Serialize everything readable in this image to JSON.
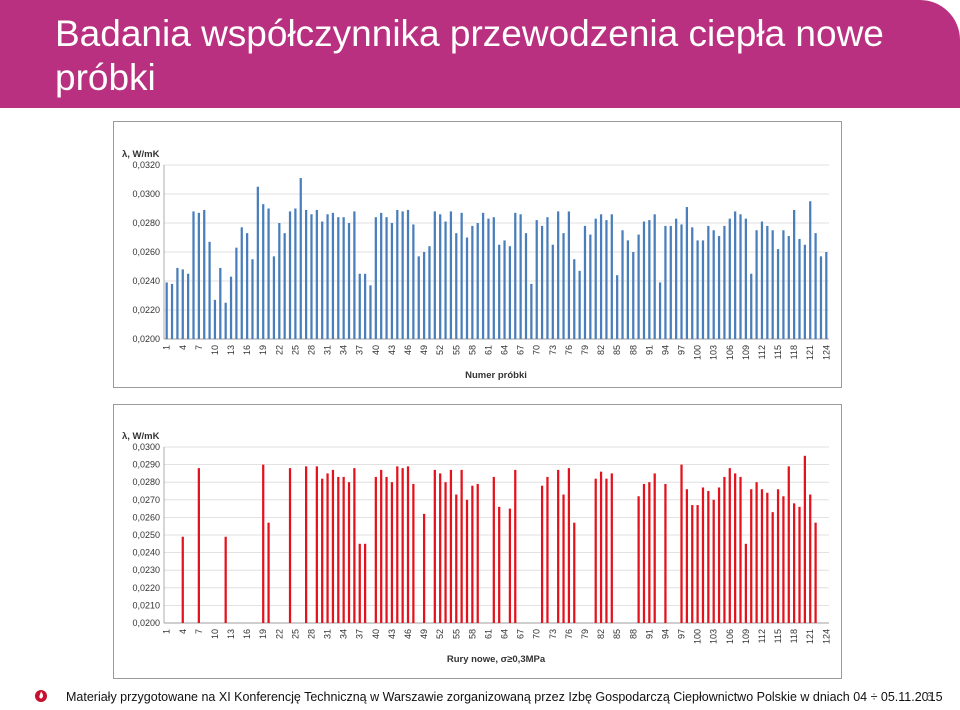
{
  "slide": {
    "title": "Badania współczynnika przewodzenia ciepła nowe próbki",
    "footer": "Materiały przygotowane na  XI Konferencję Techniczną w Warszawie zorganizowaną przez Izbę Gospodarczą Ciepłownictwo Polskie w dniach 04 ÷ 05.11.2015",
    "page_number": "6",
    "logo_icon": "flame-logo-icon"
  },
  "colors": {
    "header": "#b8307f",
    "bars_top": "#4a7ebb",
    "bars_bottom": "#e3121c"
  },
  "chart_data": [
    {
      "type": "bar",
      "ylabel": "λ, W/mK",
      "xlabel": "Numer próbki",
      "ylim": [
        0.02,
        0.032
      ],
      "yticks": [
        "0,0200",
        "0,0220",
        "0,0240",
        "0,0260",
        "0,0280",
        "0,0300",
        "0,0320"
      ],
      "ytick_values": [
        0.02,
        0.022,
        0.024,
        0.026,
        0.028,
        0.03,
        0.032
      ],
      "xtick_labels": [
        "1",
        "4",
        "7",
        "10",
        "13",
        "16",
        "19",
        "22",
        "25",
        "28",
        "31",
        "34",
        "37",
        "40",
        "43",
        "46",
        "49",
        "52",
        "55",
        "58",
        "61",
        "64",
        "67",
        "70",
        "73",
        "76",
        "79",
        "82",
        "85",
        "88",
        "91",
        "94",
        "97",
        "100",
        "103",
        "106",
        "109",
        "112",
        "115",
        "118",
        "121",
        "124"
      ],
      "categories_count": 124,
      "values": [
        0.0239,
        0.0238,
        0.0249,
        0.0248,
        0.0245,
        0.0288,
        0.0287,
        0.0289,
        0.0267,
        0.0227,
        0.0249,
        0.0225,
        0.0243,
        0.0263,
        0.0277,
        0.0273,
        0.0255,
        0.0305,
        0.0293,
        0.029,
        0.0257,
        0.028,
        0.0273,
        0.0288,
        0.029,
        0.0311,
        0.0289,
        0.0286,
        0.0289,
        0.0281,
        0.0286,
        0.0287,
        0.0284,
        0.0284,
        0.028,
        0.0288,
        0.0245,
        0.0245,
        0.0237,
        0.0284,
        0.0287,
        0.0284,
        0.028,
        0.0289,
        0.0288,
        0.0289,
        0.0279,
        0.0257,
        0.026,
        0.0264,
        0.0288,
        0.0286,
        0.0281,
        0.0288,
        0.0273,
        0.0287,
        0.027,
        0.0278,
        0.028,
        0.0287,
        0.0283,
        0.0284,
        0.0265,
        0.0268,
        0.0264,
        0.0287,
        0.0286,
        0.0273,
        0.0238,
        0.0282,
        0.0278,
        0.0284,
        0.0265,
        0.0288,
        0.0273,
        0.0288,
        0.0255,
        0.0247,
        0.0278,
        0.0272,
        0.0283,
        0.0286,
        0.0282,
        0.0286,
        0.0244,
        0.0275,
        0.0268,
        0.026,
        0.0272,
        0.0281,
        0.0282,
        0.0286,
        0.0239,
        0.0278,
        0.0278,
        0.0283,
        0.0279,
        0.0291,
        0.0277,
        0.0268,
        0.0268,
        0.0278,
        0.0275,
        0.0271,
        0.0278,
        0.0283,
        0.0288,
        0.0286,
        0.0283,
        0.0245,
        0.0275,
        0.0281,
        0.0278,
        0.0275,
        0.0262,
        0.0275,
        0.0271,
        0.0289,
        0.0269,
        0.0265,
        0.0295,
        0.0273,
        0.0257,
        0.026
      ]
    },
    {
      "type": "bar",
      "ylabel": "λ, W/mK",
      "xlabel": "Rury nowe, σ≥0,3MPa",
      "ylim": [
        0.02,
        0.03
      ],
      "yticks": [
        "0,0200",
        "0,0210",
        "0,0220",
        "0,0230",
        "0,0240",
        "0,0250",
        "0,0260",
        "0,0270",
        "0,0280",
        "0,0290",
        "0,0300"
      ],
      "ytick_values": [
        0.02,
        0.021,
        0.022,
        0.023,
        0.024,
        0.025,
        0.026,
        0.027,
        0.028,
        0.029,
        0.03
      ],
      "xtick_labels": [
        "1",
        "4",
        "7",
        "10",
        "13",
        "16",
        "19",
        "22",
        "25",
        "28",
        "31",
        "34",
        "37",
        "40",
        "43",
        "46",
        "49",
        "52",
        "55",
        "58",
        "61",
        "64",
        "67",
        "70",
        "73",
        "76",
        "79",
        "82",
        "85",
        "88",
        "91",
        "94",
        "97",
        "100",
        "103",
        "106",
        "109",
        "112",
        "115",
        "118",
        "121",
        "124"
      ],
      "categories_count": 124,
      "values": [
        null,
        null,
        null,
        0.0249,
        null,
        null,
        0.0288,
        null,
        null,
        null,
        null,
        0.0249,
        null,
        null,
        null,
        null,
        null,
        null,
        0.029,
        0.0257,
        null,
        null,
        null,
        0.0288,
        null,
        null,
        0.0289,
        null,
        0.0289,
        0.0282,
        0.0285,
        0.0287,
        0.0283,
        0.0283,
        0.028,
        0.0288,
        0.0245,
        0.0245,
        null,
        0.0283,
        0.0287,
        0.0283,
        0.028,
        0.0289,
        0.0288,
        0.0289,
        0.0279,
        null,
        0.0262,
        null,
        0.0287,
        0.0285,
        0.028,
        0.0287,
        0.0273,
        0.0287,
        0.027,
        0.0278,
        0.0279,
        null,
        null,
        0.0283,
        0.0266,
        null,
        0.0265,
        0.0287,
        null,
        null,
        null,
        null,
        0.0278,
        0.0283,
        null,
        0.0287,
        0.0273,
        0.0288,
        0.0257,
        null,
        null,
        null,
        0.0282,
        0.0286,
        0.0282,
        0.0285,
        null,
        null,
        null,
        null,
        0.0272,
        0.0279,
        0.028,
        0.0285,
        null,
        0.0279,
        null,
        null,
        0.029,
        0.0276,
        0.0267,
        0.0267,
        0.0277,
        0.0275,
        0.027,
        0.0277,
        0.0283,
        0.0288,
        0.0285,
        0.0283,
        0.0245,
        0.0276,
        0.028,
        0.0276,
        0.0274,
        0.0263,
        0.0276,
        0.0272,
        0.0289,
        0.0268,
        0.0266,
        0.0295,
        0.0273,
        0.0257,
        null
      ]
    }
  ]
}
